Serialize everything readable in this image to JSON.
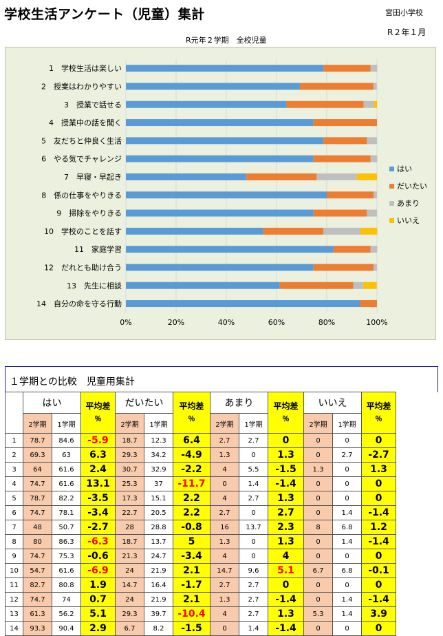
{
  "header": {
    "title": "学校生活アンケート（児童）集計",
    "school": "宮田小学校",
    "date": "R２年１月",
    "subtitle": "R元年２学期　全校児童"
  },
  "chart_data": {
    "type": "bar",
    "stacked": "100%",
    "orientation": "horizontal",
    "categories": [
      "1　学校生活は楽しい",
      "2　授業はわかりやすい",
      "3　授業で話せる",
      "4　授業中の話を聞く",
      "5　友だちと仲良く生活",
      "6　やる気でチャレンジ",
      "7　早寝・早起き",
      "8　係の仕事をやりきる",
      "9　掃除をやりきる",
      "10　学校のことを話す",
      "11　家庭学習",
      "12　だれとも助け合う",
      "13　先生に相談",
      "14　自分の命を守る行動"
    ],
    "series": [
      {
        "name": "はい",
        "color": "#5b9bd5",
        "values": [
          78.7,
          69.3,
          64,
          74.7,
          78.7,
          74.7,
          48,
          80,
          74.7,
          54.7,
          82.7,
          74.7,
          61.3,
          93.3
        ]
      },
      {
        "name": "だいたい",
        "color": "#ed7d31",
        "values": [
          18.7,
          29.3,
          30.7,
          25.3,
          17.3,
          22.7,
          28,
          18.7,
          21.3,
          24,
          14.7,
          24,
          29.3,
          6.7
        ]
      },
      {
        "name": "あまり",
        "color": "#bfbfbf",
        "values": [
          2.7,
          1.3,
          4,
          0,
          4,
          2.7,
          16,
          1.3,
          4,
          14.7,
          2.7,
          1.3,
          4,
          0
        ]
      },
      {
        "name": "いいえ",
        "color": "#ffc000",
        "values": [
          0,
          0,
          1.3,
          0,
          0,
          0,
          8,
          0,
          0,
          6.7,
          0,
          0,
          5.3,
          0
        ]
      }
    ],
    "xticks": [
      "0%",
      "20%",
      "40%",
      "60%",
      "80%",
      "100%"
    ],
    "xlim": [
      0,
      100
    ],
    "legend_position": "right"
  },
  "table": {
    "title": "１学期との比較　児童用集計",
    "groups": [
      "はい",
      "だいたい",
      "あまり",
      "いいえ"
    ],
    "avg_label": "平均差",
    "pct_label": "％",
    "term2": "2学期",
    "term1": "1学期",
    "rows": [
      {
        "n": "1",
        "c": [
          "78.7",
          "84.6",
          "-5.9",
          "18.7",
          "12.3",
          "6.4",
          "2.7",
          "2.7",
          "0",
          "0",
          "0",
          "0"
        ]
      },
      {
        "n": "2",
        "c": [
          "69.3",
          "63",
          "6.3",
          "29.3",
          "34.2",
          "-4.9",
          "1.3",
          "0",
          "1.3",
          "0",
          "2.7",
          "-2.7"
        ]
      },
      {
        "n": "3",
        "c": [
          "64",
          "61.6",
          "2.4",
          "30.7",
          "32.9",
          "-2.2",
          "4",
          "5.5",
          "-1.5",
          "1.3",
          "0",
          "1.3"
        ]
      },
      {
        "n": "4",
        "c": [
          "74.7",
          "61.6",
          "13.1",
          "25.3",
          "37",
          "-11.7",
          "0",
          "1.4",
          "-1.4",
          "0",
          "0",
          "0"
        ]
      },
      {
        "n": "5",
        "c": [
          "78.7",
          "82.2",
          "-3.5",
          "17.3",
          "15.1",
          "2.2",
          "4",
          "2.7",
          "1.3",
          "0",
          "0",
          "0"
        ]
      },
      {
        "n": "6",
        "c": [
          "74.7",
          "78.1",
          "-3.4",
          "22.7",
          "20.5",
          "2.2",
          "2.7",
          "0",
          "2.7",
          "0",
          "1.4",
          "-1.4"
        ]
      },
      {
        "n": "7",
        "c": [
          "48",
          "50.7",
          "-2.7",
          "28",
          "28.8",
          "-0.8",
          "16",
          "13.7",
          "2.3",
          "8",
          "6.8",
          "1.2"
        ]
      },
      {
        "n": "8",
        "c": [
          "80",
          "86.3",
          "-6.3",
          "18.7",
          "13.7",
          "5",
          "1.3",
          "0",
          "1.3",
          "0",
          "1.4",
          "-1.4"
        ]
      },
      {
        "n": "9",
        "c": [
          "74.7",
          "75.3",
          "-0.6",
          "21.3",
          "24.7",
          "-3.4",
          "4",
          "0",
          "4",
          "0",
          "0",
          "0"
        ]
      },
      {
        "n": "10",
        "c": [
          "54.7",
          "61.6",
          "-6.9",
          "24",
          "21.9",
          "2.1",
          "14.7",
          "9.6",
          "5.1",
          "6.7",
          "6.8",
          "-0.1"
        ]
      },
      {
        "n": "11",
        "c": [
          "82.7",
          "80.8",
          "1.9",
          "14.7",
          "16.4",
          "-1.7",
          "2.7",
          "2.7",
          "0",
          "0",
          "0",
          "0"
        ]
      },
      {
        "n": "12",
        "c": [
          "74.7",
          "74",
          "0.7",
          "24",
          "21.9",
          "2.1",
          "1.3",
          "2.7",
          "-1.4",
          "0",
          "1.4",
          "-1.4"
        ]
      },
      {
        "n": "13",
        "c": [
          "61.3",
          "56.2",
          "5.1",
          "29.3",
          "39.7",
          "-10.4",
          "4",
          "2.7",
          "1.3",
          "5.3",
          "1.4",
          "3.9"
        ]
      },
      {
        "n": "14",
        "c": [
          "93.3",
          "90.4",
          "2.9",
          "6.7",
          "8.2",
          "-1.5",
          "0",
          "1.4",
          "-1.4",
          "0",
          "0",
          "0"
        ]
      }
    ],
    "highlight_red": [
      {
        "row": 0,
        "col": 2
      },
      {
        "row": 3,
        "col": 5
      },
      {
        "row": 7,
        "col": 2
      },
      {
        "row": 9,
        "col": 2
      },
      {
        "row": 9,
        "col": 8
      },
      {
        "row": 12,
        "col": 5
      }
    ]
  }
}
